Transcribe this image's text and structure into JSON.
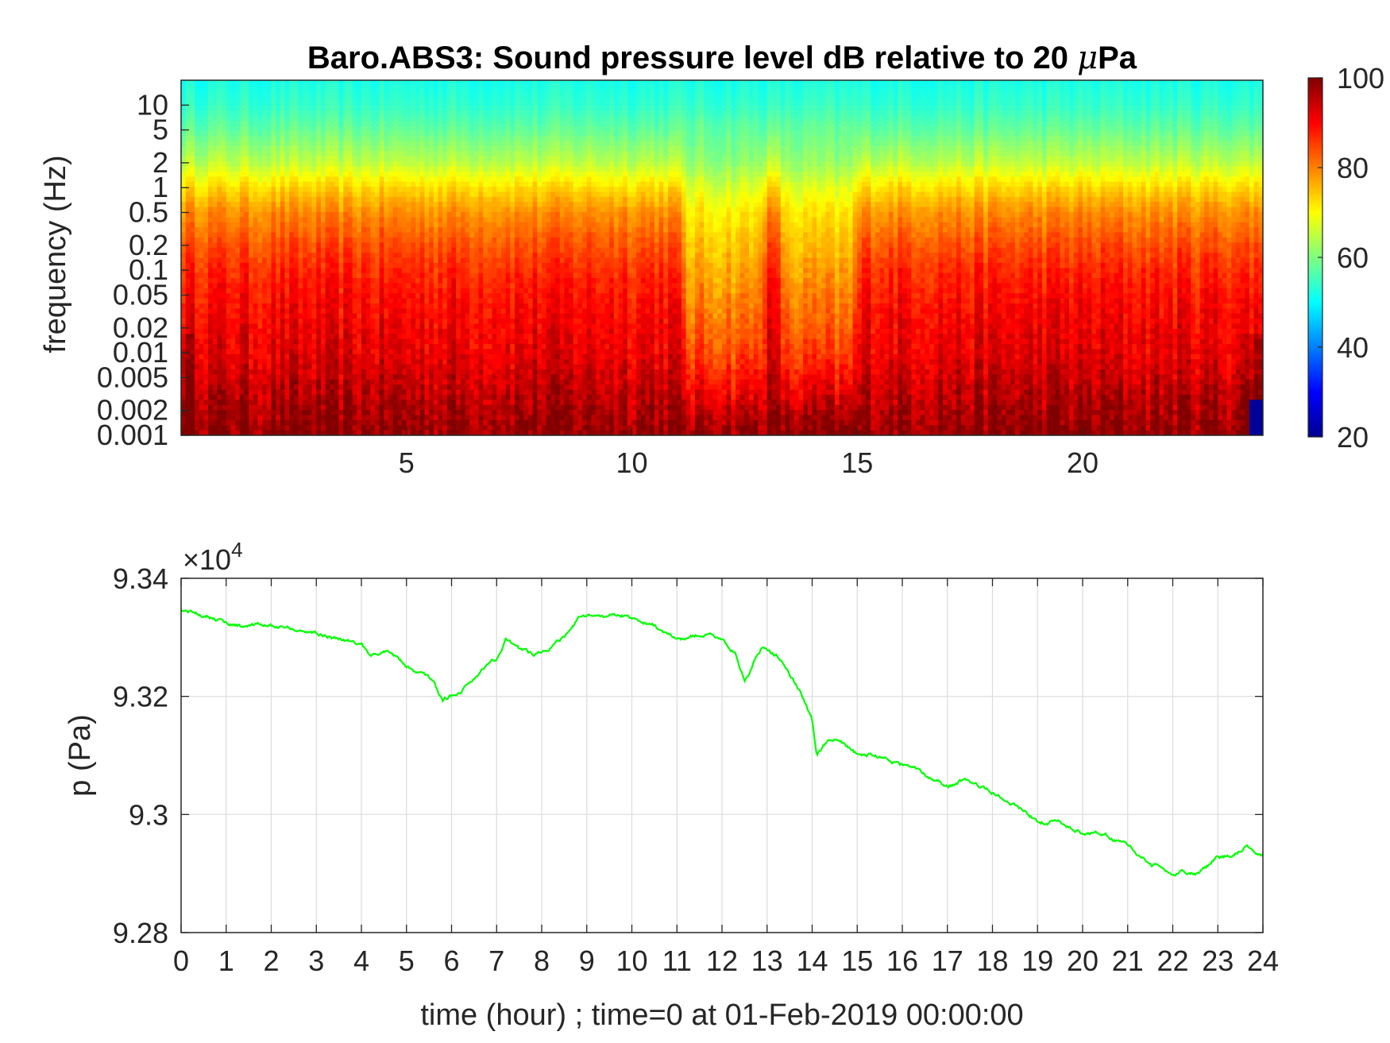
{
  "chart_data": [
    {
      "type": "heatmap",
      "title": "Baro.ABS3: Sound pressure level dB relative to 20 ",
      "title_mu": "μ",
      "title_unit": "Pa",
      "ylabel": "frequency (Hz)",
      "xlabel": "",
      "x_ticks": [
        "5",
        "10",
        "15",
        "20"
      ],
      "x_tick_values": [
        5,
        10,
        15,
        20
      ],
      "xlim": [
        0,
        24
      ],
      "y_scale": "log",
      "y_ticks": [
        "10",
        "5",
        "2",
        "1",
        "0.5",
        "0.2",
        "0.1",
        "0.05",
        "0.02",
        "0.01",
        "0.005",
        "0.002",
        "0.001"
      ],
      "y_tick_values": [
        10,
        5,
        2,
        1,
        0.5,
        0.2,
        0.1,
        0.05,
        0.02,
        0.01,
        0.005,
        0.002,
        0.001
      ],
      "ylim": [
        0.001,
        20
      ],
      "colormap": "jet",
      "colorbar": {
        "ticks": [
          "100",
          "80",
          "60",
          "40",
          "20"
        ],
        "tick_values": [
          100,
          80,
          60,
          40,
          20
        ],
        "range": [
          20,
          100
        ],
        "placement": "right"
      },
      "level_by_band_db": [
        {
          "freq": 20,
          "db": 52
        },
        {
          "freq": 10,
          "db": 54
        },
        {
          "freq": 5,
          "db": 58
        },
        {
          "freq": 2,
          "db": 65
        },
        {
          "freq": 1,
          "db": 73
        },
        {
          "freq": 0.5,
          "db": 79
        },
        {
          "freq": 0.2,
          "db": 84
        },
        {
          "freq": 0.1,
          "db": 87
        },
        {
          "freq": 0.05,
          "db": 89
        },
        {
          "freq": 0.02,
          "db": 91
        },
        {
          "freq": 0.01,
          "db": 92
        },
        {
          "freq": 0.005,
          "db": 94
        },
        {
          "freq": 0.002,
          "db": 97
        },
        {
          "freq": 0.001,
          "db": 99
        }
      ],
      "quiet_intervals_hour": [
        [
          11,
          13
        ],
        [
          13.2,
          15.1
        ]
      ],
      "colors": {
        "low": "#00008f",
        "high": "#800000"
      }
    },
    {
      "type": "line",
      "title": "",
      "xlabel": "time (hour) ; time=0 at 01-Feb-2019 00:00:00",
      "ylabel": "p (Pa)",
      "y_exponent_label": "×10",
      "y_exponent_power": "4",
      "xlim": [
        0,
        24
      ],
      "ylim": [
        9.28,
        9.34
      ],
      "y_units_note": "values shown in units of 10^4 Pa",
      "x_ticks": [
        "0",
        "1",
        "2",
        "3",
        "4",
        "5",
        "6",
        "7",
        "8",
        "9",
        "10",
        "11",
        "12",
        "13",
        "14",
        "15",
        "16",
        "17",
        "18",
        "19",
        "20",
        "21",
        "22",
        "23",
        "24"
      ],
      "y_ticks": [
        "9.34",
        "9.32",
        "9.3",
        "9.28"
      ],
      "y_tick_values": [
        9.34,
        9.32,
        9.3,
        9.28
      ],
      "grid": true,
      "color": "#00ff00",
      "series": [
        {
          "x": [
            0,
            0.3,
            0.6,
            1.0,
            1.5,
            2.0,
            2.5,
            3.0,
            3.5,
            4.0,
            4.2,
            4.6,
            5.0,
            5.3,
            5.6,
            5.8,
            6.2,
            6.5,
            6.8,
            7.0,
            7.2,
            7.5,
            7.8,
            8.2,
            8.5,
            8.8,
            9.2,
            9.6,
            10.0,
            10.5,
            11.0,
            11.5,
            12.0,
            12.3,
            12.5,
            12.7,
            12.9,
            13.2,
            13.5,
            13.8,
            14.0,
            14.1,
            14.3,
            14.6,
            15.0,
            15.3,
            15.6,
            16.0,
            16.3,
            16.6,
            17.0,
            17.4,
            17.8,
            18.2,
            18.6,
            19.0,
            19.5,
            20.0,
            20.5,
            21.0,
            21.5,
            22.0,
            22.2,
            22.5,
            22.8,
            23.0,
            23.3,
            23.6,
            24.0
          ],
          "y": [
            9.3345,
            9.3343,
            9.3338,
            9.3325,
            9.3318,
            9.332,
            9.3315,
            9.3305,
            9.3298,
            9.329,
            9.3265,
            9.3278,
            9.3252,
            9.324,
            9.3225,
            9.3192,
            9.321,
            9.3232,
            9.3258,
            9.3265,
            9.33,
            9.328,
            9.3272,
            9.3285,
            9.3298,
            9.333,
            9.3335,
            9.3338,
            9.3335,
            9.332,
            9.3295,
            9.3305,
            9.3298,
            9.3275,
            9.3225,
            9.3255,
            9.3285,
            9.327,
            9.324,
            9.32,
            9.316,
            9.31,
            9.312,
            9.313,
            9.31,
            9.3102,
            9.3095,
            9.3085,
            9.3075,
            9.3065,
            9.305,
            9.3058,
            9.3045,
            9.303,
            9.301,
            9.299,
            9.2985,
            9.297,
            9.2965,
            9.2945,
            9.2918,
            9.2898,
            9.2902,
            9.29,
            9.2915,
            9.293,
            9.293,
            9.2945,
            9.2932
          ]
        }
      ]
    }
  ]
}
